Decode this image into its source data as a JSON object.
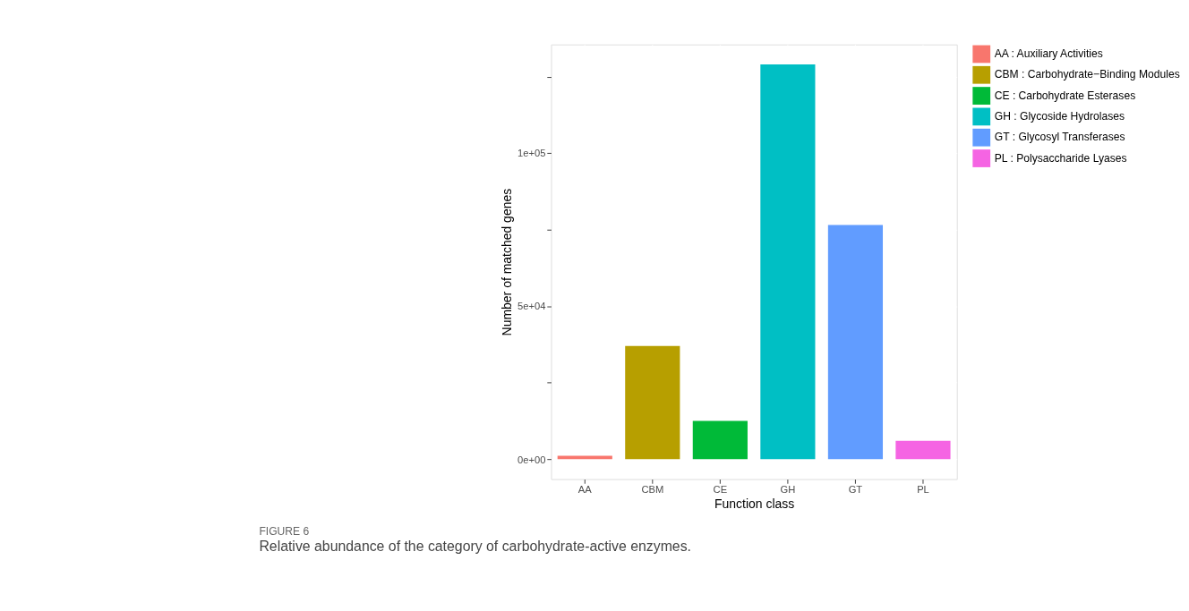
{
  "chart_data": {
    "type": "bar",
    "xlabel": "Function class",
    "ylabel": "Number of matched genes",
    "categories": [
      "AA",
      "CBM",
      "CE",
      "GH",
      "GT",
      "PL"
    ],
    "series": [
      {
        "name": "AA : Auxiliary Activities",
        "color": "#f8766d",
        "values": [
          1100,
          null,
          null,
          null,
          null,
          null
        ]
      },
      {
        "name": "CBM : Carbohydrate−Binding Modules",
        "color": "#b79f00",
        "values": [
          null,
          37000,
          null,
          null,
          null,
          null
        ]
      },
      {
        "name": "CE : Carbohydrate Esterases",
        "color": "#00ba38",
        "values": [
          null,
          null,
          12500,
          null,
          null,
          null
        ]
      },
      {
        "name": "GH : Glycoside Hydrolases",
        "color": "#00bfc4",
        "values": [
          null,
          null,
          null,
          129000,
          null,
          null
        ]
      },
      {
        "name": "GT : Glycosyl Transferases",
        "color": "#619cff",
        "values": [
          null,
          null,
          null,
          null,
          76500,
          null
        ]
      },
      {
        "name": "PL : Polysaccharide Lyases",
        "color": "#f564e3",
        "values": [
          null,
          null,
          null,
          null,
          null,
          6000
        ]
      }
    ],
    "ylim": [
      -6500,
      135500
    ],
    "yticks": [
      {
        "value": 0,
        "label": "0e+00"
      },
      {
        "value": 25000,
        "label": null
      },
      {
        "value": 50000,
        "label": "5e+04"
      },
      {
        "value": 75000,
        "label": null
      },
      {
        "value": 100000,
        "label": "1e+05"
      },
      {
        "value": 125000,
        "label": null
      }
    ],
    "grid": true,
    "legend": "right",
    "annotations": [
      "FIGURE 6",
      "Relative abundance of the category of carbohydrate-active enzymes."
    ]
  }
}
